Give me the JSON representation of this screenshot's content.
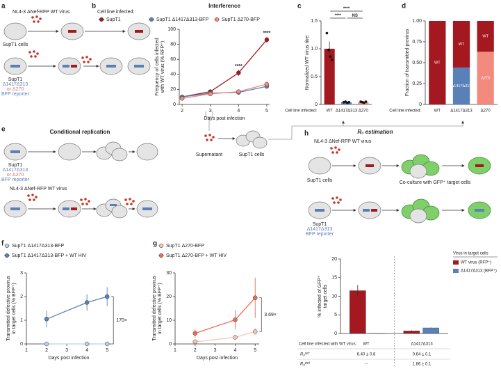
{
  "panel_labels": [
    "a",
    "b",
    "c",
    "d",
    "e",
    "f",
    "g",
    "h"
  ],
  "diagrams": {
    "a": {
      "virus": "NL4-3 ΔNef-RFP WT virus",
      "cells": "SupT1 cells",
      "line": "SupT1",
      "mut1": "Δ1417Δ313",
      "mut2": "or Δ270",
      "reporter": "BFP reporter"
    },
    "b": {
      "supernatant": "Supernatant",
      "cells": "SupT1 cells"
    },
    "e": {
      "title": "Conditional replication",
      "line": "SupT1",
      "mut1": "Δ1417Δ313",
      "mut2": "or Δ270",
      "reporter": "BFP reporter",
      "virus": "NL4-3 ΔNef-RFP WT virus"
    },
    "h": {
      "title": "R₀ estimation",
      "virus": "NL4-3 ΔNef-RFP WT virus",
      "cells": "SupT1 cells",
      "coculture": "Co-culture with GFP⁺ target cells",
      "line": "SupT1",
      "mut1": "Δ1417Δ313",
      "reporter": "BFP reporter"
    }
  },
  "chart_data": [
    {
      "type": "line",
      "title": "Interference",
      "legend_title": "Cell line infected:",
      "x": [
        2,
        3,
        4,
        5
      ],
      "xlim": [
        1.9,
        5.1
      ],
      "xticks": [
        2,
        3,
        4,
        5
      ],
      "ylim": [
        0,
        100
      ],
      "yticks": [
        0,
        20,
        40,
        60,
        80,
        100
      ],
      "xlabel": "Days post infection",
      "ylabel": [
        "Frequency of cells infected",
        "with WT virus (% RFP⁺)"
      ],
      "series": [
        {
          "name": "SupT1",
          "color": "#a3191f",
          "values": [
            10,
            17,
            42,
            86
          ],
          "errors": [
            1,
            2,
            4,
            4
          ]
        },
        {
          "name": "SupT1 Δ1417Δ313-BFP",
          "color": "#5a80b8",
          "values": [
            10,
            15,
            16,
            24
          ],
          "errors": [
            1,
            1,
            1,
            2
          ]
        },
        {
          "name": "SupT1 Δ270-BFP",
          "color": "#f28b7d",
          "values": [
            8,
            14,
            17,
            27
          ],
          "errors": [
            1,
            1,
            1,
            3
          ]
        }
      ],
      "annotations": [
        {
          "x": 4,
          "text": "****"
        },
        {
          "x": 5,
          "text": "****"
        }
      ]
    },
    {
      "type": "bar",
      "ylabel": "Normalized WT virus titre",
      "category_label": "Cell line infected:",
      "categories": [
        "WT",
        "Δ1417Δ313",
        "Δ270"
      ],
      "values": [
        1.0,
        0.04,
        0.04
      ],
      "errors": [
        0.13,
        0.01,
        0.01
      ],
      "colors": [
        "#a3191f",
        "#5a80b8",
        "#f28b7d"
      ],
      "points": [
        [
          1.28,
          0.98,
          0.86,
          0.8
        ],
        [
          0.04,
          0.05,
          0.03,
          0.04
        ],
        [
          0.05,
          0.04,
          0.03,
          0.05
        ]
      ],
      "ylim": [
        0,
        1.5
      ],
      "yticks": [
        0,
        0.5,
        {
          "value": 1,
          "label": "1.0"
        },
        1.5
      ],
      "significance": [
        {
          "between": [
            "WT",
            "Δ270"
          ],
          "label": "****"
        },
        {
          "between": [
            "WT",
            "Δ1417Δ313"
          ],
          "label": "****"
        },
        {
          "between": [
            "Δ1417Δ313",
            "Δ270"
          ],
          "label": "NS"
        }
      ]
    },
    {
      "type": "stacked_bar",
      "ylabel": "Fraction of transmitted provirus",
      "category_label": "Cell line infected:",
      "categories": [
        "WT",
        "Δ1417Δ313",
        "Δ270"
      ],
      "ylim": [
        0,
        1
      ],
      "yticks": [
        0,
        0.25,
        {
          "value": 0.5,
          "label": "0.50"
        },
        0.75,
        {
          "value": 1,
          "label": "1.00"
        }
      ],
      "series": [
        {
          "name": "Δ1417Δ313",
          "color": "#5a80b8",
          "values": [
            null,
            0.44,
            null
          ]
        },
        {
          "name": "Δ270",
          "color": "#f28b7d",
          "values": [
            null,
            null,
            0.63
          ]
        },
        {
          "name": "WT",
          "color": "#a3191f",
          "values": [
            1.0,
            0.56,
            0.37
          ]
        }
      ]
    },
    {
      "type": "line",
      "x": [
        2,
        4,
        5
      ],
      "xlim": [
        1,
        5.2
      ],
      "xticks": [
        1,
        2,
        3,
        4,
        5
      ],
      "ylim": [
        0,
        3
      ],
      "yticks": [
        0,
        1,
        2,
        3
      ],
      "xlabel": "Days post infection",
      "ylabel": [
        "Transmitted defective provirus",
        "in target cells (% BFP⁺)"
      ],
      "series": [
        {
          "name": "SupT1 Δ1417Δ313-BFP",
          "color": "#bccfe8",
          "values": [
            0,
            0,
            0
          ]
        },
        {
          "name": "SupT1 Δ1417Δ313-BFP + WT HIV",
          "color": "#5a80b8",
          "values": [
            1.05,
            1.75,
            2.0
          ],
          "errors": [
            0.35,
            0.35,
            0.4
          ]
        }
      ],
      "ratio": "170×"
    },
    {
      "type": "line",
      "x": [
        2,
        4,
        5
      ],
      "xlim": [
        1,
        5.2
      ],
      "xticks": [
        1,
        2,
        3,
        4,
        5
      ],
      "ylim": [
        0,
        30
      ],
      "yticks": [
        0,
        10,
        20,
        30
      ],
      "xlabel": "Days post infection",
      "ylabel": [
        "Transmitted defective provirus",
        "in target cells (% BFP⁺)"
      ],
      "series": [
        {
          "name": "SupT1 Δ270-BFP",
          "color": "#f8c4b8",
          "values": [
            0.9,
            2.8,
            5.2
          ],
          "errors": [
            0.5,
            0.5,
            1.5
          ]
        },
        {
          "name": "SupT1 Δ270-BFP + WT HIV",
          "color": "#f06a55",
          "values": [
            4.5,
            10.2,
            19.5
          ],
          "errors": [
            1.8,
            4,
            8.5
          ]
        }
      ],
      "ratio": "3.69×"
    },
    {
      "type": "grouped_bar",
      "legend_title": "Virus in target cells",
      "ylabel": [
        "% infected of GFP⁺",
        "target cells"
      ],
      "ylim": [
        0,
        20
      ],
      "yticks": [
        0,
        5,
        10,
        15,
        20
      ],
      "series": [
        {
          "name": "WT virus (RFP⁺)",
          "color": "#a3191f",
          "values": [
            11.5,
            0.7
          ],
          "errors": [
            1.5,
            0.15
          ]
        },
        {
          "name": "Δ1417Δ313 (BFP⁺)",
          "color": "#5a80b8",
          "values": [
            0.05,
            1.5
          ],
          "errors": [
            0.02,
            0.1
          ]
        }
      ]
    }
  ],
  "table": {
    "header": [
      "Cell line infected with WT virus:",
      "WT",
      "Δ1417Δ313"
    ],
    "rows": [
      [
        "R₀ᵂᵀ",
        "6.40 ± 0.8",
        "0.64 ± 0.1"
      ],
      [
        "R₀ᴰᴱᶠ",
        "–",
        "1.86 ± 0.1"
      ]
    ]
  }
}
